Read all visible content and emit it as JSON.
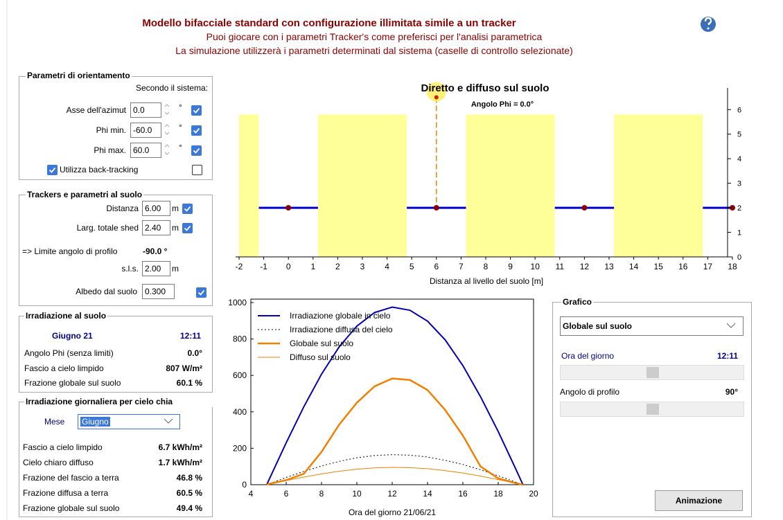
{
  "header": {
    "title": "Modello bifacciale standard con configurazione illimitata simile a un tracker",
    "lines": [
      "Puoi giocare con i parametri Tracker's come preferisci per l'analisi parametrica",
      "La simulazione utilizzerà i parametri determinati dal sistema (caselle di controllo selezionate)"
    ]
  },
  "orientation": {
    "title": "Parametri di orientamento",
    "subtitle": "Secondo il sistema:",
    "fields": [
      {
        "label": "Asse dell'azimut",
        "value": "0.0",
        "unit": "°",
        "checked": true
      },
      {
        "label": "Phi min.",
        "value": "-60.0",
        "unit": "°",
        "checked": true
      },
      {
        "label": "Phi max.",
        "value": "60.0",
        "unit": "°",
        "checked": true
      }
    ],
    "backtracking": {
      "label": "Utilizza back-tracking",
      "checked": true,
      "system_checked": false
    }
  },
  "trackers": {
    "title": "Trackers e parametri al suolo",
    "fields": [
      {
        "label": "Distanza",
        "value": "6.00",
        "unit": "m",
        "checked": true
      },
      {
        "label": "Larg. totale shed",
        "value": "2.40",
        "unit": "m",
        "checked": true
      }
    ],
    "limit": {
      "label": "=> Limite angolo di profilo",
      "value": "-90.0 °"
    },
    "sls": {
      "label": "s.l.s.",
      "value": "2.00",
      "unit": "m"
    },
    "albedo": {
      "label": "Albedo dal suolo",
      "value": "0.300",
      "checked": true
    }
  },
  "irradiation": {
    "title": "Irradiazione al suolo",
    "date": "Giugno 21",
    "time": "12:11",
    "rows": [
      [
        "Angolo Phi (senza limiti)",
        "0.0°"
      ],
      [
        "Fascio a cielo limpido",
        "807 W/m²"
      ],
      [
        "Frazione globale sul suolo",
        "60.1 %"
      ]
    ]
  },
  "daily": {
    "title": "Irradiazione giornaliera per cielo chia",
    "month_label": "Mese",
    "month": "Giugno",
    "rows": [
      [
        "Fascio a cielo limpido",
        "6.7 kWh/m²"
      ],
      [
        "Cielo chiaro diffuso",
        "1.7 kWh/m²"
      ],
      [
        "Frazione del fascio a terra",
        "46.8 %"
      ],
      [
        "Frazione diffusa a terra",
        "60.5 %"
      ],
      [
        "Frazione globale sul suolo",
        "49.4 %"
      ]
    ]
  },
  "graph": {
    "title": "Grafico",
    "select": "Globale sul suolo",
    "time_label": "Ora del giorno",
    "time": "12:11",
    "angle_label": "Angolo di profilo",
    "angle": "90°",
    "button": "Animazione"
  },
  "ground_chart": {
    "type": "ground",
    "title": "Diretto e diffuso sul suolo",
    "subtitle": "Angolo Phi = 0.0°",
    "x_label": "Distanza al livello del suolo [m]",
    "xlim": [
      -2,
      18
    ],
    "ylim": [
      0,
      6.6
    ],
    "xticks": [
      -2,
      -1,
      0,
      1,
      2,
      3,
      4,
      5,
      6,
      7,
      8,
      9,
      10,
      11,
      12,
      13,
      14,
      15,
      16,
      17,
      18
    ],
    "yticks": [
      0,
      1,
      2,
      3,
      4,
      5,
      6
    ],
    "lit_zones": [
      {
        "from": -2,
        "to": -1.2
      },
      {
        "from": 1.2,
        "to": 4.8
      },
      {
        "from": 7.2,
        "to": 10.8
      },
      {
        "from": 13.2,
        "to": 16.8
      }
    ],
    "zone_top": 5.8,
    "zone_color": "#ffff99",
    "tracker_centers": [
      0,
      6,
      12,
      18
    ],
    "tracker_width": 2.4,
    "tracker_height": 2,
    "tracker_color": "#0000cc",
    "sun": {
      "x": 6,
      "y": 6.5
    }
  },
  "daily_chart": {
    "type": "line",
    "x_label": "Ora del giorno 21/06/21",
    "xlim": [
      4,
      20
    ],
    "ylim": [
      0,
      1000
    ],
    "xticks": [
      4,
      6,
      8,
      10,
      12,
      14,
      16,
      18,
      20
    ],
    "yticks": [
      0,
      200,
      400,
      600,
      800,
      1000
    ],
    "x": [
      4.9,
      5,
      6,
      7,
      8,
      9,
      10,
      11,
      12,
      13,
      14,
      15,
      16,
      17,
      18,
      19,
      19.4
    ],
    "series": [
      {
        "name": "Irradiazione globale in cielo",
        "color": "#0000b0",
        "width": 2,
        "dash": "",
        "values": [
          0,
          21,
          230,
          428,
          607,
          757,
          871,
          945,
          975,
          958,
          898,
          795,
          654,
          483,
          292,
          85,
          0
        ]
      },
      {
        "name": "Irradiazione diffusa del cielo",
        "color": "#000000",
        "width": 1,
        "dash": "2 3",
        "values": [
          0,
          3,
          40,
          73,
          103,
          128,
          148,
          160,
          165,
          162,
          152,
          134,
          111,
          82,
          49,
          14,
          0
        ]
      },
      {
        "name": "Globale sul suolo",
        "color": "#f08000",
        "width": 2.5,
        "dash": "",
        "values": [
          0,
          4,
          25,
          60,
          180,
          330,
          450,
          540,
          583,
          575,
          520,
          410,
          270,
          100,
          35,
          8,
          0
        ]
      },
      {
        "name": "Diffuso sul suolo",
        "color": "#f08000",
        "width": 1,
        "dash": "",
        "values": [
          0,
          1,
          23,
          42,
          59,
          74,
          85,
          92,
          95,
          93,
          88,
          77,
          64,
          47,
          28,
          8,
          0
        ]
      }
    ]
  }
}
